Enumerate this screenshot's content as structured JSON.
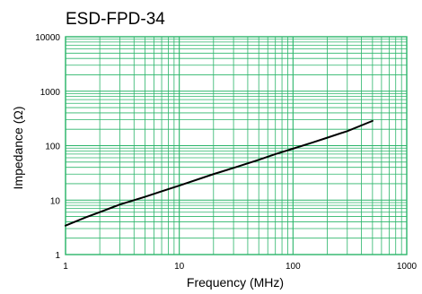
{
  "chart_data": {
    "type": "line",
    "title": "ESD-FPD-34",
    "xlabel": "Frequency (MHz)",
    "ylabel": "Impedance (Ω)",
    "x_scale": "log",
    "y_scale": "log",
    "xlim": [
      1,
      1000
    ],
    "ylim": [
      1,
      10000
    ],
    "x_ticks": [
      "1",
      "10",
      "100",
      "1000"
    ],
    "y_ticks": [
      "1",
      "10",
      "100",
      "1000",
      "10000"
    ],
    "grid": true,
    "grid_color": "#2bb56a",
    "line_color": "#000000",
    "series": [
      {
        "x": [
          1,
          1.5,
          2,
          3,
          5,
          7,
          10,
          20,
          30,
          50,
          70,
          100,
          150,
          200,
          300,
          500
        ],
        "y": [
          3.4,
          4.8,
          6.0,
          8.3,
          11.5,
          14.5,
          18.5,
          30,
          39,
          55,
          70,
          88,
          115,
          140,
          185,
          285
        ]
      }
    ]
  }
}
